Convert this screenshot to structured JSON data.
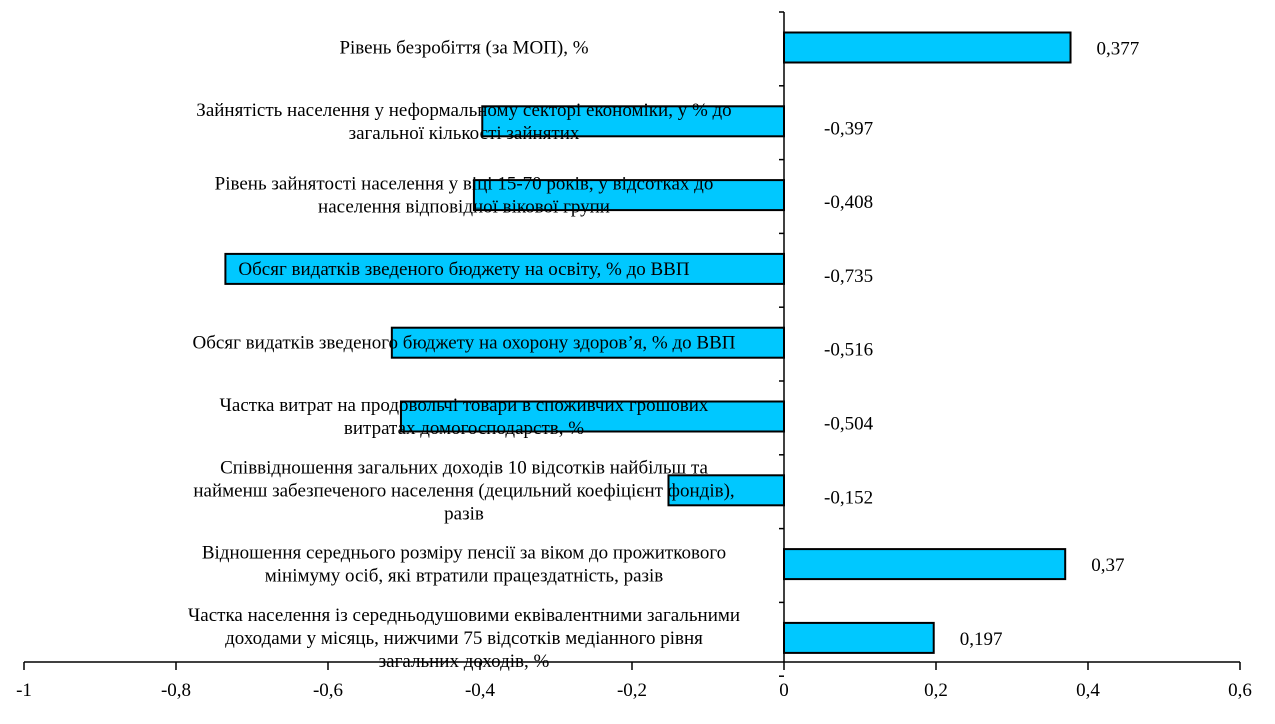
{
  "chart_data": {
    "type": "bar",
    "orientation": "horizontal",
    "categories": [
      [
        "Рівень безробіття (за МОП), %"
      ],
      [
        "Зайнятість населення у неформальному секторі економіки, у % до",
        "загальної кількості зайнятих"
      ],
      [
        "Рівень зайнятості населення у віці 15-70 років, у відсотках до",
        "населення відповідної вікової групи"
      ],
      [
        "Обсяг видатків зведеного бюджету на освіту, % до ВВП"
      ],
      [
        "Обсяг видатків зведеного бюджету на охорону здоров’я, % до ВВП"
      ],
      [
        "Частка витрат на продовольчі товари в споживчих грошових",
        "витратах домогосподарств, %"
      ],
      [
        "Співвідношення загальних доходів 10 відсотків найбільш та",
        "найменш забезпеченого населення (децильний коефіцієнт фондів),",
        "разів"
      ],
      [
        "Відношення середнього розміру пенсії за віком до прожиткового",
        "мінімуму осіб, які втратили працездатність, разів"
      ],
      [
        "Частка населення із середньодушовими еквівалентними загальними",
        "доходами у місяць, нижчими 75 відсотків медіанного рівня",
        "загальних доходів, %"
      ]
    ],
    "values": [
      0.377,
      -0.397,
      -0.408,
      -0.735,
      -0.516,
      -0.504,
      -0.152,
      0.37,
      0.197
    ],
    "value_labels": [
      "0,377",
      "-0,397",
      "-0,408",
      "-0,735",
      "-0,516",
      "-0,504",
      "-0,152",
      "0,37",
      "0,197"
    ],
    "xlim": [
      -1,
      0.6
    ],
    "xticks": [
      -1,
      -0.8,
      -0.6,
      -0.4,
      -0.2,
      0,
      0.2,
      0.4,
      0.6
    ],
    "xtick_labels": [
      "-1",
      "-0,8",
      "-0,6",
      "-0,4",
      "-0,2",
      "0",
      "0,2",
      "0,4",
      "0,6"
    ],
    "bar_color": "#00c8ff",
    "grid": false,
    "legend": "none",
    "title": "",
    "xlabel": "",
    "ylabel": ""
  }
}
